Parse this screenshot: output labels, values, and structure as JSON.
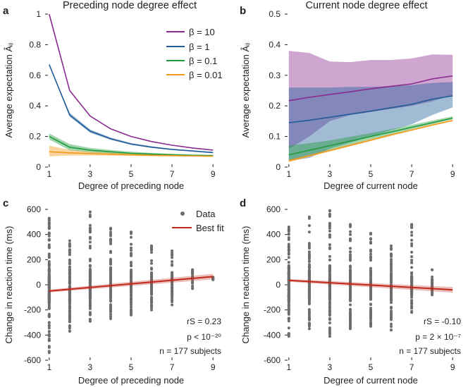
{
  "colors": {
    "beta10": "#8a2b90",
    "beta1": "#1f5c99",
    "beta01": "#1f9a3a",
    "beta001": "#f29a1c",
    "data": "#6d6d6d",
    "fit": "#c0281b"
  },
  "chart_data": [
    {
      "id": "a",
      "panel_label": "a",
      "type": "line",
      "title": "Preceding node degree effect",
      "xlabel": "Degree of preceding node",
      "ylabel": "Average expectation Âᵢⱼ",
      "xlim": [
        0.8,
        9.2
      ],
      "ylim": [
        0,
        1
      ],
      "xticks": [
        1,
        3,
        5,
        7,
        9
      ],
      "yticks": [
        0,
        0.2,
        0.4,
        0.6,
        0.8,
        1
      ],
      "ytick_labels": [
        "0",
        "0.2",
        "0.4",
        "0.6",
        "0.8",
        "1"
      ],
      "legend": [
        {
          "label": "β = 10",
          "color_key": "beta10"
        },
        {
          "label": "β = 1",
          "color_key": "beta1"
        },
        {
          "label": "β = 0.1",
          "color_key": "beta01"
        },
        {
          "label": "β = 0.01",
          "color_key": "beta001"
        }
      ],
      "x": [
        1,
        2,
        3,
        4,
        5,
        6,
        7,
        8,
        9
      ],
      "series": [
        {
          "name": "β = 10",
          "color_key": "beta10",
          "values": [
            1.0,
            0.5,
            0.333,
            0.25,
            0.2,
            0.167,
            0.143,
            0.125,
            0.111
          ],
          "lower": [
            1.0,
            0.5,
            0.333,
            0.25,
            0.2,
            0.167,
            0.143,
            0.125,
            0.111
          ],
          "upper": [
            1.0,
            0.5,
            0.333,
            0.25,
            0.2,
            0.167,
            0.143,
            0.125,
            0.111
          ]
        },
        {
          "name": "β = 1",
          "color_key": "beta1",
          "values": [
            0.67,
            0.34,
            0.235,
            0.185,
            0.15,
            0.13,
            0.115,
            0.105,
            0.095
          ],
          "lower": [
            0.67,
            0.33,
            0.225,
            0.178,
            0.145,
            0.126,
            0.111,
            0.101,
            0.091
          ],
          "upper": [
            0.67,
            0.355,
            0.245,
            0.193,
            0.157,
            0.136,
            0.12,
            0.109,
            0.099
          ]
        },
        {
          "name": "β = 0.1",
          "color_key": "beta01",
          "values": [
            0.2,
            0.13,
            0.11,
            0.1,
            0.09,
            0.085,
            0.08,
            0.077,
            0.075
          ],
          "lower": [
            0.18,
            0.11,
            0.095,
            0.088,
            0.082,
            0.079,
            0.075,
            0.073,
            0.071
          ],
          "upper": [
            0.22,
            0.15,
            0.125,
            0.112,
            0.1,
            0.092,
            0.086,
            0.081,
            0.079
          ]
        },
        {
          "name": "β = 0.01",
          "color_key": "beta001",
          "values": [
            0.1,
            0.093,
            0.088,
            0.084,
            0.08,
            0.077,
            0.075,
            0.073,
            0.071
          ],
          "lower": [
            0.07,
            0.075,
            0.076,
            0.075,
            0.073,
            0.071,
            0.07,
            0.069,
            0.068
          ],
          "upper": [
            0.14,
            0.112,
            0.1,
            0.093,
            0.087,
            0.083,
            0.08,
            0.077,
            0.074
          ]
        }
      ]
    },
    {
      "id": "b",
      "panel_label": "b",
      "type": "line",
      "title": "Current node degree effect",
      "xlabel": "Degree of current node",
      "ylabel": "Average expectation Âᵢⱼ",
      "xlim": [
        0.8,
        9.2
      ],
      "ylim": [
        0,
        0.5
      ],
      "xticks": [
        1,
        3,
        5,
        7,
        9
      ],
      "yticks": [
        0,
        0.1,
        0.2,
        0.3,
        0.4,
        0.5
      ],
      "ytick_labels": [
        "0",
        "0.1",
        "0.2",
        "0.3",
        "0.4",
        "0.5"
      ],
      "x": [
        1,
        2,
        3,
        4,
        5,
        6,
        7,
        8,
        9
      ],
      "series": [
        {
          "name": "β = 10",
          "color_key": "beta10",
          "values": [
            0.217,
            0.228,
            0.237,
            0.246,
            0.256,
            0.264,
            0.272,
            0.288,
            0.298
          ],
          "lower": [
            0.06,
            0.1,
            0.15,
            0.17,
            0.18,
            0.19,
            0.2,
            0.215,
            0.235
          ],
          "upper": [
            0.38,
            0.373,
            0.345,
            0.343,
            0.35,
            0.35,
            0.355,
            0.368,
            0.367
          ]
        },
        {
          "name": "β = 1",
          "color_key": "beta1",
          "values": [
            0.145,
            0.153,
            0.163,
            0.173,
            0.183,
            0.194,
            0.205,
            0.222,
            0.233
          ],
          "lower": [
            0.02,
            0.03,
            0.06,
            0.08,
            0.1,
            0.12,
            0.14,
            0.17,
            0.195
          ],
          "upper": [
            0.26,
            0.26,
            0.26,
            0.262,
            0.262,
            0.265,
            0.268,
            0.275,
            0.278
          ]
        },
        {
          "name": "β = 0.1",
          "color_key": "beta01",
          "values": [
            0.04,
            0.055,
            0.07,
            0.085,
            0.1,
            0.115,
            0.13,
            0.145,
            0.16
          ],
          "lower": [
            0.02,
            0.037,
            0.055,
            0.073,
            0.09,
            0.107,
            0.124,
            0.14,
            0.156
          ],
          "upper": [
            0.07,
            0.078,
            0.087,
            0.099,
            0.111,
            0.124,
            0.138,
            0.152,
            0.166
          ]
        },
        {
          "name": "β = 0.01",
          "color_key": "beta001",
          "values": [
            0.02,
            0.037,
            0.054,
            0.071,
            0.088,
            0.105,
            0.121,
            0.137,
            0.152
          ],
          "lower": [
            0.016,
            0.034,
            0.051,
            0.068,
            0.085,
            0.102,
            0.119,
            0.135,
            0.15
          ],
          "upper": [
            0.024,
            0.04,
            0.057,
            0.074,
            0.091,
            0.108,
            0.124,
            0.14,
            0.155
          ]
        }
      ]
    },
    {
      "id": "c",
      "panel_label": "c",
      "type": "scatter",
      "xlabel": "Degree of preceding node",
      "ylabel": "Change in reaction time (ms)",
      "xlim": [
        0.8,
        9.2
      ],
      "ylim": [
        -600,
        600
      ],
      "xticks": [
        1,
        3,
        5,
        7,
        9
      ],
      "yticks": [
        -600,
        -400,
        -200,
        0,
        200,
        400,
        600
      ],
      "ytick_labels": [
        "-600",
        "-400",
        "-200",
        "0",
        "200",
        "400",
        "600"
      ],
      "legend": [
        {
          "label": "Data",
          "kind": "marker",
          "color_key": "data"
        },
        {
          "label": "Best fit",
          "kind": "line",
          "color_key": "fit"
        }
      ],
      "columns": [
        {
          "x": 1,
          "min": -540,
          "max": 530,
          "q1": -140,
          "q3": 140
        },
        {
          "x": 2,
          "min": -370,
          "max": 350,
          "q1": -130,
          "q3": 130
        },
        {
          "x": 3,
          "min": -290,
          "max": 580,
          "q1": -110,
          "q3": 120
        },
        {
          "x": 4,
          "min": -270,
          "max": 450,
          "q1": -100,
          "q3": 120
        },
        {
          "x": 5,
          "min": -240,
          "max": 420,
          "q1": -90,
          "q3": 110
        },
        {
          "x": 6,
          "min": -200,
          "max": 310,
          "q1": -70,
          "q3": 100
        },
        {
          "x": 7,
          "min": -160,
          "max": 270,
          "q1": -50,
          "q3": 100
        },
        {
          "x": 8,
          "min": -30,
          "max": 120,
          "q1": 10,
          "q3": 90
        },
        {
          "x": 9,
          "min": 40,
          "max": 60,
          "q1": 45,
          "q3": 55
        }
      ],
      "fit": {
        "x": [
          1,
          9
        ],
        "y": [
          -50,
          65
        ]
      },
      "annotations": [
        "rS = 0.23",
        "p < 10⁻²⁰",
        "n = 177 subjects"
      ]
    },
    {
      "id": "d",
      "panel_label": "d",
      "type": "scatter",
      "xlabel": "Degree of current node",
      "ylabel": "Change in reaction time (ms)",
      "xlim": [
        0.8,
        9.2
      ],
      "ylim": [
        -600,
        600
      ],
      "xticks": [
        1,
        3,
        5,
        7,
        9
      ],
      "yticks": [
        -600,
        -400,
        -200,
        0,
        200,
        400,
        600
      ],
      "ytick_labels": [
        "-600",
        "-400",
        "-200",
        "0",
        "200",
        "400",
        "600"
      ],
      "columns": [
        {
          "x": 1,
          "min": -410,
          "max": 460,
          "q1": -140,
          "q3": 160
        },
        {
          "x": 2,
          "min": -350,
          "max": 540,
          "q1": -130,
          "q3": 150
        },
        {
          "x": 3,
          "min": -410,
          "max": 590,
          "q1": -120,
          "q3": 150
        },
        {
          "x": 4,
          "min": -350,
          "max": 480,
          "q1": -120,
          "q3": 120
        },
        {
          "x": 5,
          "min": -330,
          "max": 410,
          "q1": -120,
          "q3": 100
        },
        {
          "x": 6,
          "min": -360,
          "max": 310,
          "q1": -110,
          "q3": 80
        },
        {
          "x": 7,
          "min": -220,
          "max": 480,
          "q1": -80,
          "q3": 70
        },
        {
          "x": 8,
          "min": -80,
          "max": 120,
          "q1": -40,
          "q3": 40
        }
      ],
      "fit": {
        "x": [
          1,
          9
        ],
        "y": [
          35,
          -40
        ]
      },
      "annotations": [
        "rS = -0.10",
        "p = 2 × 10⁻⁷",
        "n = 177 subjects"
      ]
    }
  ]
}
